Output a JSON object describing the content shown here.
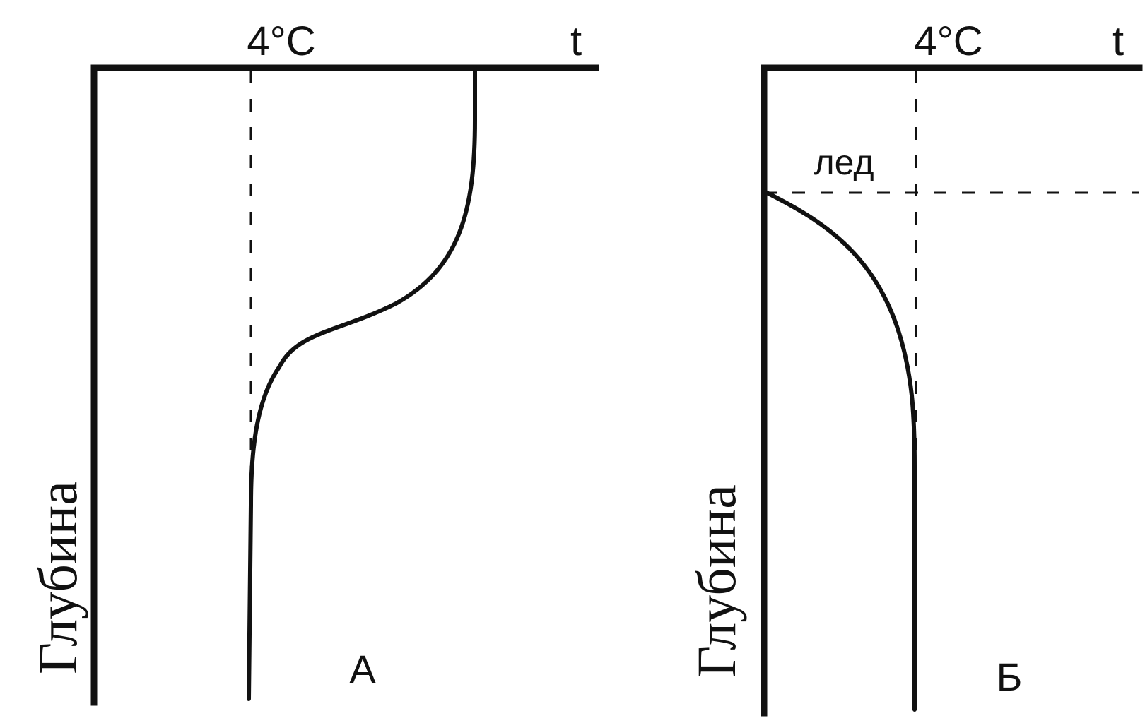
{
  "panel_a": {
    "temp_mark": "4°C",
    "axis_t": "t",
    "depth_label": "Глубина",
    "panel_letter": "А"
  },
  "panel_b": {
    "temp_mark": "4°C",
    "axis_t": "t",
    "depth_label": "Глубина",
    "ice_label": "лед",
    "panel_letter": "Б"
  },
  "colors": {
    "ink": "#111111",
    "background": "#ffffff"
  }
}
